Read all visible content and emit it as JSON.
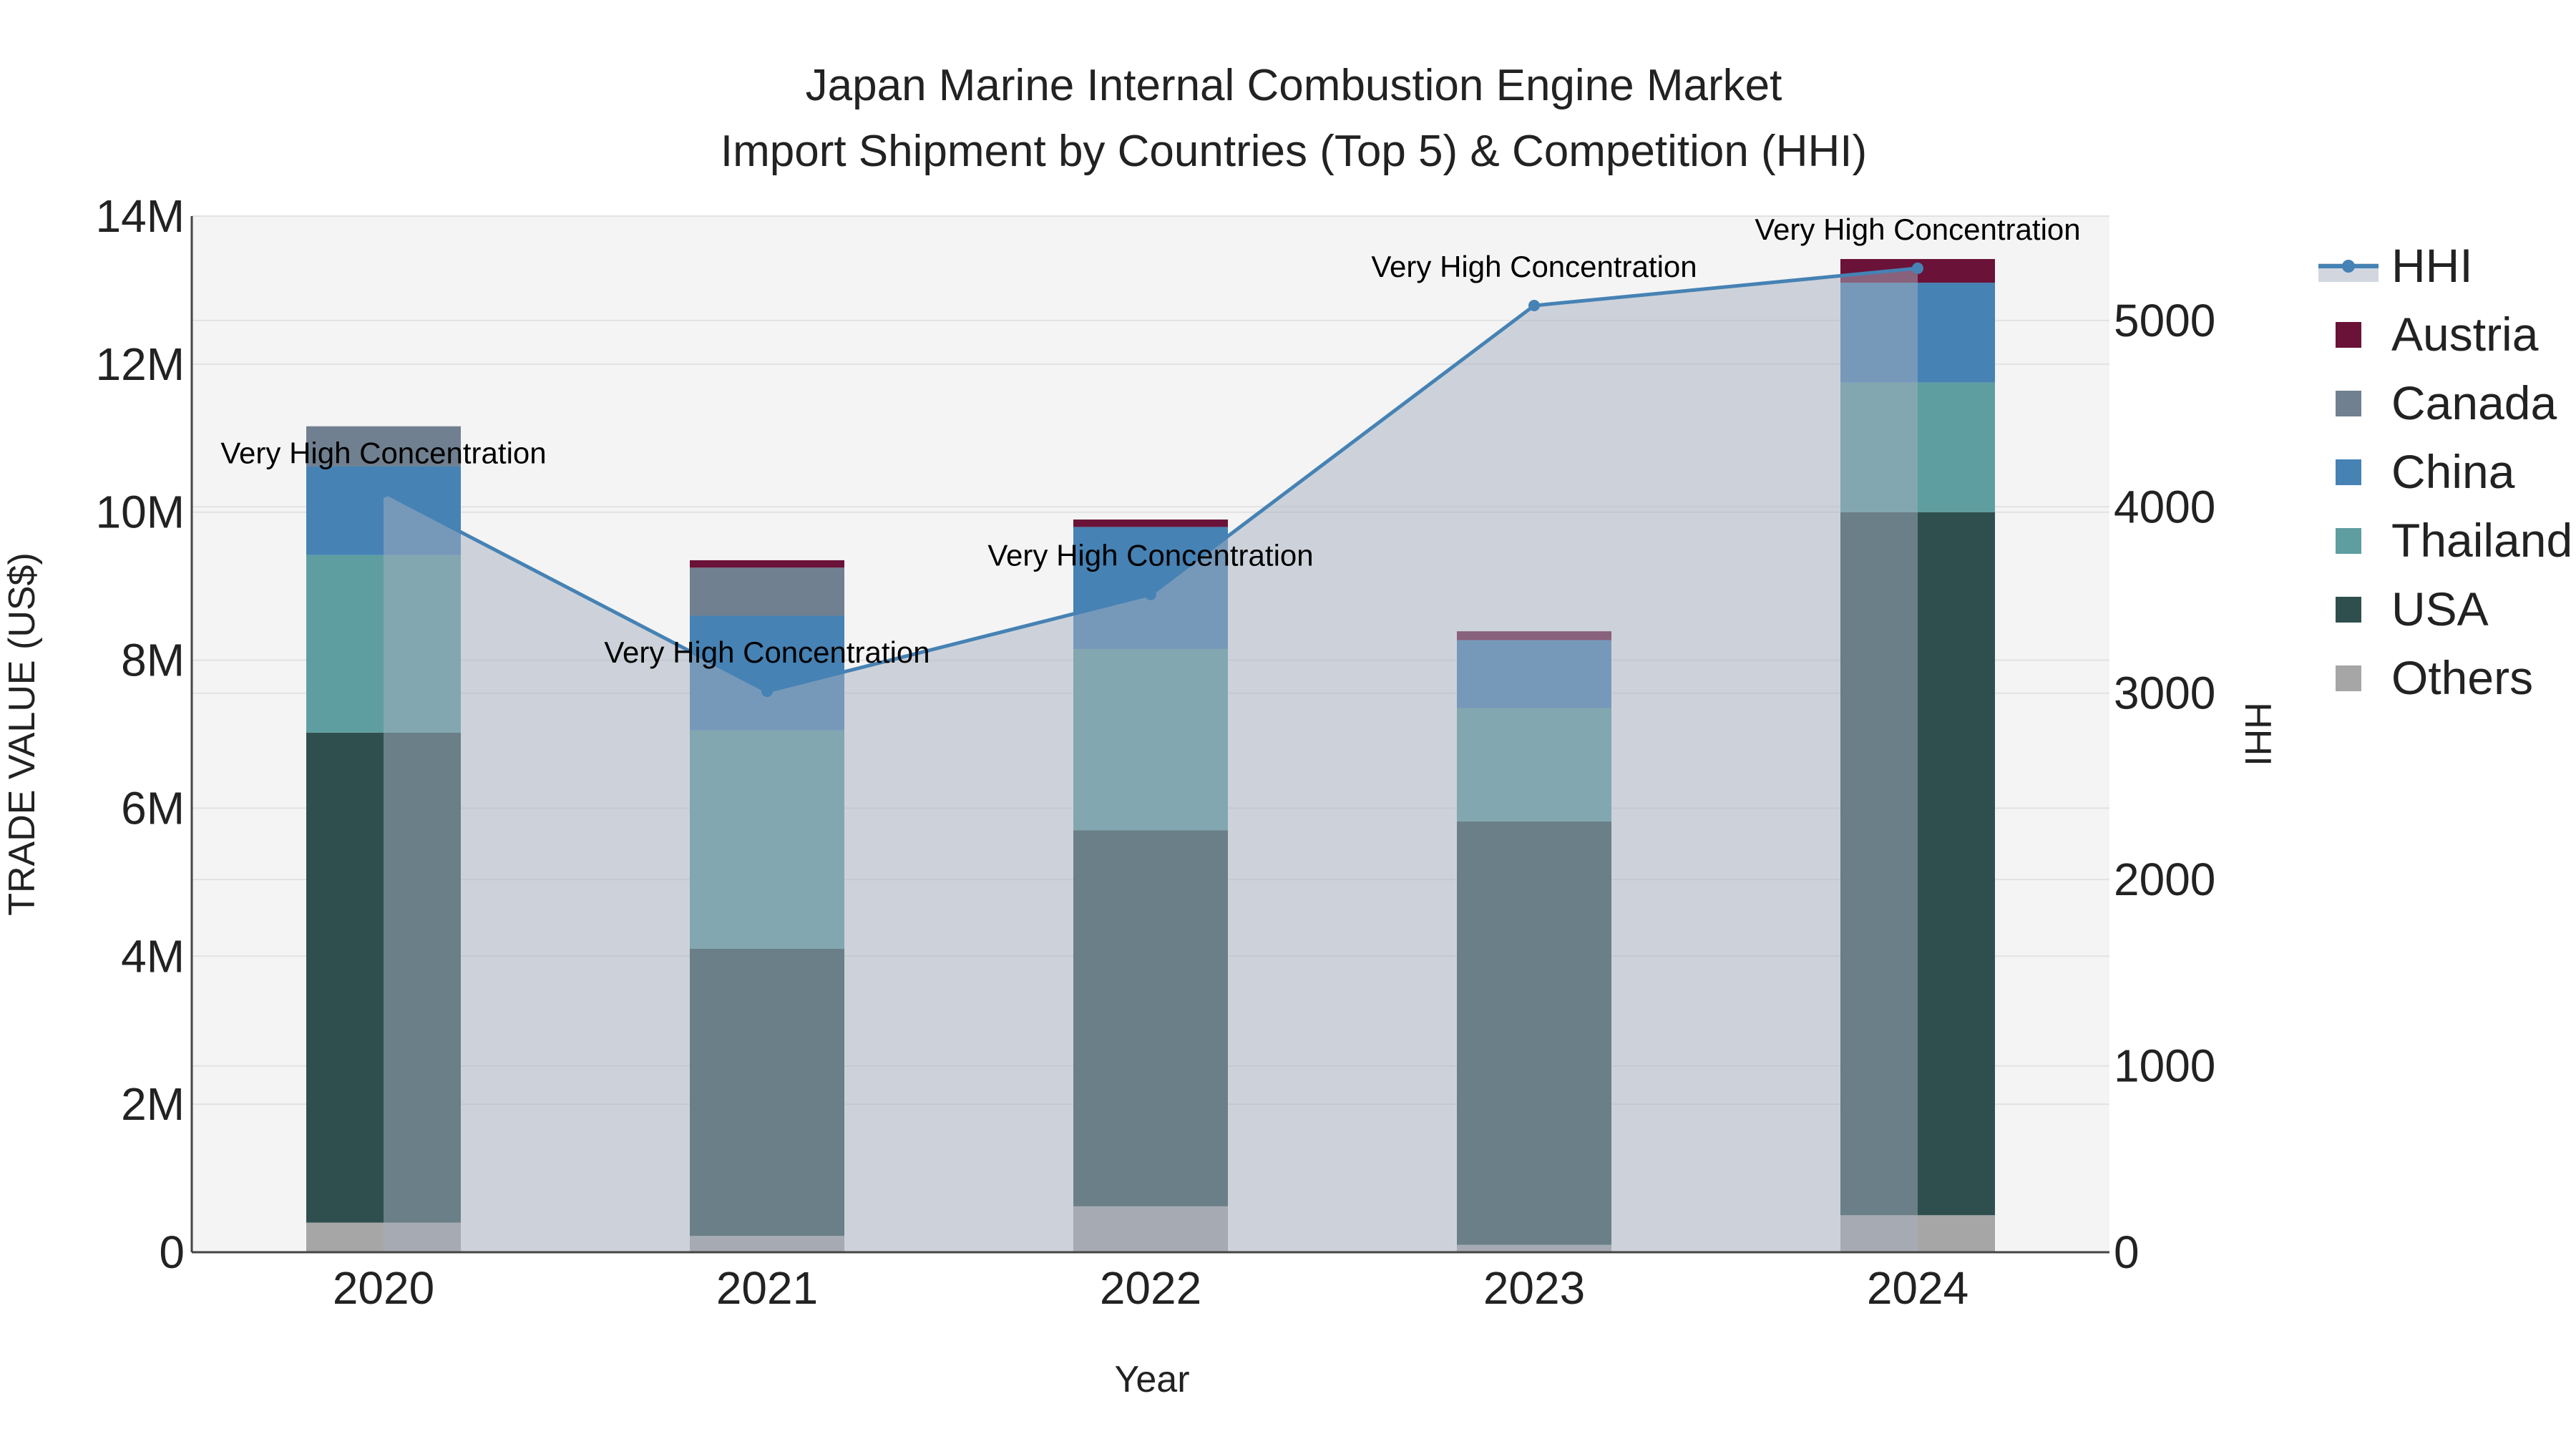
{
  "chart_data": {
    "type": "bar",
    "title": {
      "line1": "Japan Marine Internal Combustion Engine Market",
      "line2": "Import Shipment by Countries (Top 5) & Competition (HHI)"
    },
    "xlabel": "Year",
    "ylabel": "TRADE VALUE (US$)",
    "y2label": "HHI",
    "categories": [
      "2020",
      "2021",
      "2022",
      "2023",
      "2024"
    ],
    "ylim": [
      0,
      14000000
    ],
    "y2lim": [
      0,
      5560
    ],
    "y_ticks": [
      {
        "value": 0,
        "label": "0"
      },
      {
        "value": 2000000,
        "label": "2M"
      },
      {
        "value": 4000000,
        "label": "4M"
      },
      {
        "value": 6000000,
        "label": "6M"
      },
      {
        "value": 8000000,
        "label": "8M"
      },
      {
        "value": 10000000,
        "label": "10M"
      },
      {
        "value": 12000000,
        "label": "12M"
      },
      {
        "value": 14000000,
        "label": "14M"
      }
    ],
    "y2_ticks": [
      {
        "value": 0,
        "label": "0"
      },
      {
        "value": 1000,
        "label": "1000"
      },
      {
        "value": 2000,
        "label": "2000"
      },
      {
        "value": 3000,
        "label": "3000"
      },
      {
        "value": 4000,
        "label": "4000"
      },
      {
        "value": 5000,
        "label": "5000"
      }
    ],
    "stack_order": [
      "Others",
      "USA",
      "Thailand",
      "China",
      "Canada",
      "Austria"
    ],
    "series": [
      {
        "name": "Others",
        "color": "#a6a6a6",
        "values": [
          400000,
          220000,
          620000,
          100000,
          500000
        ]
      },
      {
        "name": "USA",
        "color": "#2f4f4f",
        "values": [
          6620000,
          3880000,
          5080000,
          5720000,
          9500000
        ]
      },
      {
        "name": "Thailand",
        "color": "#5f9ea0",
        "values": [
          2400000,
          2950000,
          2450000,
          1530000,
          1750000
        ]
      },
      {
        "name": "China",
        "color": "#4682b4",
        "values": [
          1200000,
          1550000,
          1650000,
          920000,
          1350000
        ]
      },
      {
        "name": "Canada",
        "color": "#708090",
        "values": [
          540000,
          650000,
          0,
          0,
          0
        ]
      },
      {
        "name": "Austria",
        "color": "#6b1238",
        "values": [
          0,
          100000,
          100000,
          120000,
          320000
        ]
      }
    ],
    "hhi": {
      "name": "HHI",
      "color": "#4682b4",
      "values": [
        4080,
        3010,
        3530,
        5080,
        5280
      ],
      "annotations": [
        "Very High Concentration",
        "Very High Concentration",
        "Very High Concentration",
        "Very High Concentration",
        "Very High Concentration"
      ]
    },
    "legend": {
      "position": "right",
      "items": [
        {
          "name": "HHI",
          "kind": "line",
          "color": "#4682b4"
        },
        {
          "name": "Austria",
          "kind": "box",
          "color": "#6b1238"
        },
        {
          "name": "Canada",
          "kind": "box",
          "color": "#708090"
        },
        {
          "name": "China",
          "kind": "box",
          "color": "#4682b4"
        },
        {
          "name": "Thailand",
          "kind": "box",
          "color": "#5f9ea0"
        },
        {
          "name": "USA",
          "kind": "box",
          "color": "#2f4f4f"
        },
        {
          "name": "Others",
          "kind": "box",
          "color": "#a6a6a6"
        }
      ]
    },
    "colors": {
      "plot_bg": "#f4f4f4",
      "grid": "#e2e2e2",
      "hhi_fill": "rgba(165,175,192,0.5)",
      "axis": "#444444"
    }
  }
}
